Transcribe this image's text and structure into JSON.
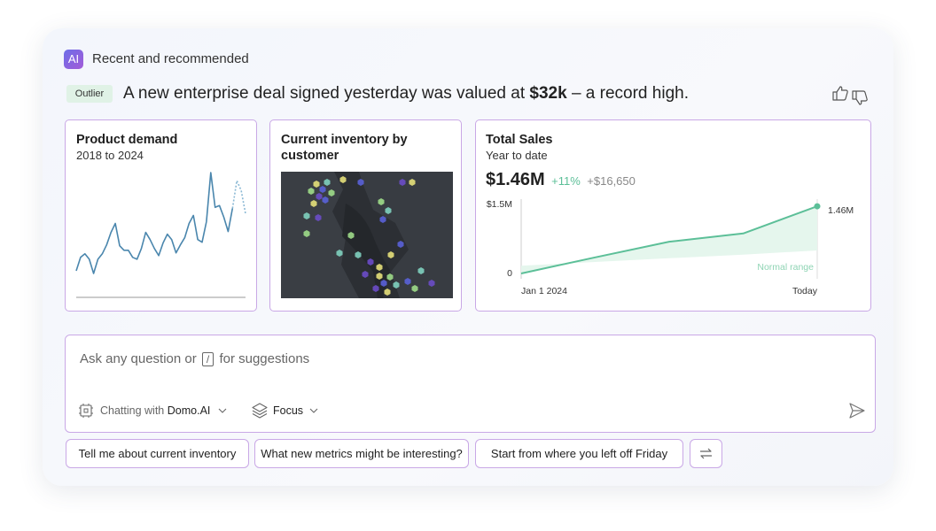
{
  "header": {
    "badge": "AI",
    "title": "Recent and recommended"
  },
  "insight": {
    "tag": "Outlier",
    "text_before": "A new enterprise deal signed yesterday was valued at",
    "highlight": "$32k",
    "text_after": "– a record high."
  },
  "map_card": {
    "title": "Current inventory by customer"
  },
  "chart_data": [
    {
      "type": "line",
      "title": "Product demand",
      "subtitle": "2018 to 2024",
      "series": [
        {
          "color": "#4a86ad",
          "style": "solid",
          "values": [
            35,
            50,
            54,
            48,
            32,
            48,
            54,
            64,
            78,
            88,
            63,
            58,
            58,
            50,
            48,
            60,
            78,
            70,
            60,
            52,
            66,
            76,
            70,
            55,
            64,
            72,
            88,
            97,
            70,
            67,
            90,
            145,
            106,
            108,
            95,
            79,
            105,
            null,
            null,
            null
          ]
        },
        {
          "color": "#8ab8d4",
          "style": "dotted",
          "values": [
            null,
            null,
            null,
            null,
            null,
            null,
            null,
            null,
            null,
            null,
            null,
            null,
            null,
            null,
            null,
            null,
            null,
            null,
            null,
            null,
            null,
            null,
            null,
            null,
            null,
            null,
            null,
            null,
            null,
            null,
            null,
            null,
            null,
            null,
            null,
            null,
            105,
            136,
            125,
            99
          ]
        }
      ]
    },
    {
      "type": "line",
      "title": "Total Sales",
      "subtitle": "Year to date",
      "kpi": {
        "value": "$1.46M",
        "change": "+11%",
        "delta": "+$16,650"
      },
      "categories": [
        "Jan 1 2024",
        null,
        null,
        null,
        "Today"
      ],
      "values": [
        0,
        350000,
        690000,
        870000,
        1460000
      ],
      "value_labels": [
        null,
        null,
        null,
        null,
        "1.46M"
      ],
      "color": "#5cbf98",
      "band": {
        "label": "Normal range",
        "low": [
          170000,
          250000,
          330000,
          410000,
          500000
        ],
        "color": "#e5f6ed"
      },
      "ylim": [
        0,
        1500000
      ],
      "yticks": [
        {
          "value": 1500000,
          "label": "$1.5M"
        },
        0
      ]
    }
  ],
  "composer": {
    "placeholder_before": "Ask any question or",
    "placeholder_key": "/",
    "placeholder_after": "for suggestions",
    "chat_prefix": "Chatting with",
    "chat_agent": "Domo.AI",
    "focus": "Focus"
  },
  "suggestions": [
    "Tell me about current inventory",
    "What new metrics might be interesting?",
    "Start from where you left off Friday"
  ]
}
